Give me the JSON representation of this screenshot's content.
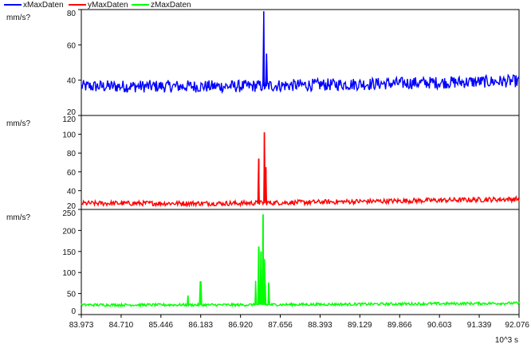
{
  "legend": [
    {
      "name": "xMaxDaten",
      "color": "#0000ff"
    },
    {
      "name": "yMaxDaten",
      "color": "#ff0000"
    },
    {
      "name": "zMaxDaten",
      "color": "#00ff00"
    }
  ],
  "x_axis": {
    "unit": "10^3 s",
    "min": 83.973,
    "max": 92.076,
    "ticks": [
      "83.973",
      "84.710",
      "85.446",
      "86.183",
      "86.920",
      "87.656",
      "88.393",
      "89.129",
      "89.866",
      "90.603",
      "91.339",
      "92.076"
    ]
  },
  "chart_data": [
    {
      "type": "line",
      "series_label": "xMaxDaten",
      "ylabel": "mm/s?",
      "color": "#0000ff",
      "ylim": [
        20,
        80
      ],
      "yticks": [
        20,
        40,
        60,
        80
      ],
      "baseline": 36.5,
      "noise": 3.5,
      "trend_end": 39.5,
      "x": [
        83.973,
        87.3,
        87.35,
        87.37,
        87.4,
        92.076
      ],
      "y": [
        36,
        37,
        79,
        38,
        55,
        40
      ]
    },
    {
      "type": "line",
      "series_label": "yMaxDaten",
      "ylabel": "mm/s?",
      "color": "#ff0000",
      "ylim": [
        20,
        120
      ],
      "yticks": [
        20,
        40,
        60,
        80,
        100,
        120
      ],
      "baseline": 26.5,
      "noise": 2.6,
      "trend_end": 31,
      "x": [
        83.973,
        87.26,
        87.36,
        87.39,
        92.076
      ],
      "y": [
        27,
        74,
        102,
        65,
        32
      ]
    },
    {
      "type": "line",
      "series_label": "zMaxDaten",
      "ylabel": "mm/s?",
      "color": "#00ff00",
      "ylim": [
        0,
        250
      ],
      "yticks": [
        0,
        50,
        100,
        150,
        200,
        250
      ],
      "baseline": 23,
      "noise": 3.2,
      "trend_end": 27,
      "x": [
        83.973,
        85.95,
        86.18,
        87.2,
        87.26,
        87.3,
        87.34,
        87.36,
        87.38,
        87.44,
        92.076
      ],
      "y": [
        22,
        45,
        78,
        80,
        162,
        150,
        238,
        132,
        70,
        76,
        27
      ]
    }
  ]
}
